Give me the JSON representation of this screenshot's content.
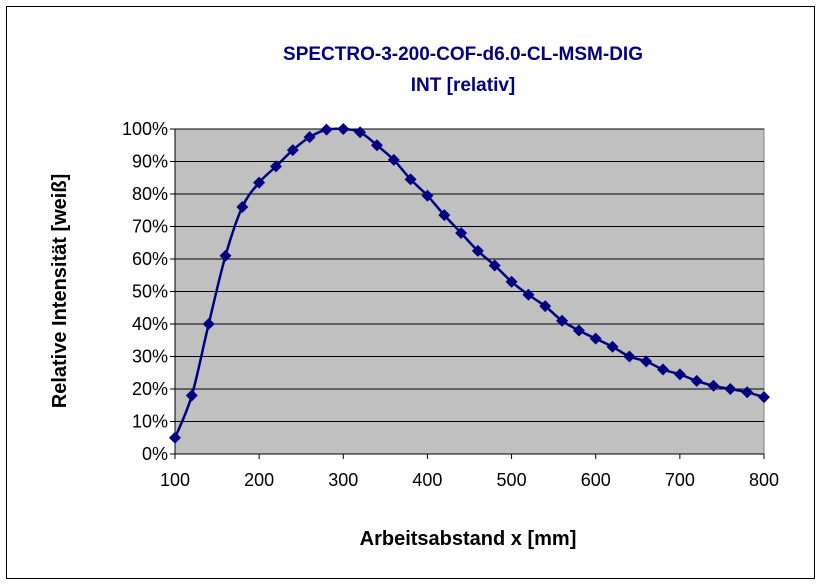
{
  "chart_data": {
    "type": "line",
    "title_lines": [
      "SPECTRO-3-200-COF-d6.0-CL-MSM-DIG",
      "INT [relativ]"
    ],
    "xlabel": "Arbeitsabstand x [mm]",
    "ylabel": "Relative Intensität [weiß]",
    "xlim": [
      100,
      800
    ],
    "ylim": [
      0,
      100
    ],
    "x_ticks": [
      100,
      200,
      300,
      400,
      500,
      600,
      700,
      800
    ],
    "y_ticks": [
      0,
      10,
      20,
      30,
      40,
      50,
      60,
      70,
      80,
      90,
      100
    ],
    "y_tick_labels": [
      "0%",
      "10%",
      "20%",
      "30%",
      "40%",
      "50%",
      "60%",
      "70%",
      "80%",
      "90%",
      "100%"
    ],
    "grid": "horizontal",
    "legend": "none",
    "series": [
      {
        "color": "#000080",
        "marker": "diamond",
        "x": [
          100,
          120,
          140,
          160,
          180,
          200,
          220,
          240,
          260,
          280,
          300,
          320,
          340,
          360,
          380,
          400,
          420,
          440,
          460,
          480,
          500,
          520,
          540,
          560,
          580,
          600,
          620,
          640,
          660,
          680,
          700,
          720,
          740,
          760,
          780,
          800
        ],
        "y": [
          5,
          18,
          40,
          61,
          76,
          83.5,
          88.5,
          93.5,
          97.5,
          99.8,
          100,
          99,
          95,
          90.5,
          84.5,
          79.5,
          73.5,
          68,
          62.5,
          58,
          53,
          49,
          45.5,
          41,
          38,
          35.5,
          33,
          30,
          28.5,
          26,
          24.5,
          22.5,
          21,
          20,
          19,
          17.5
        ]
      }
    ]
  },
  "style": {
    "plot_background": "#c0c0c0",
    "grid_color": "#000000",
    "series_color": "#000080"
  }
}
